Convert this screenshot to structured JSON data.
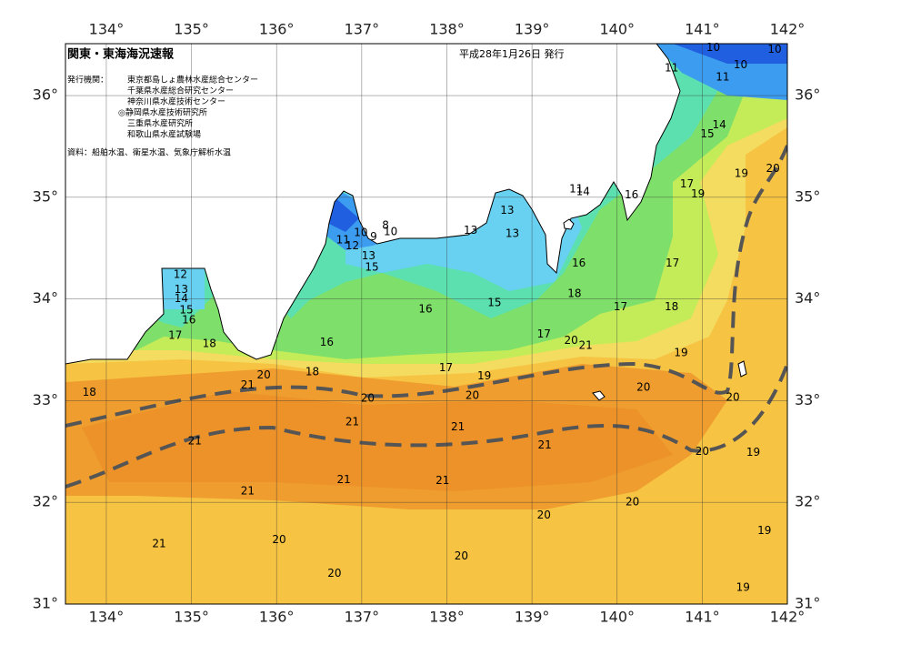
{
  "map": {
    "title": "関東・東海海況速報",
    "issue_date": "平成28年1月26日 発行",
    "issuers_label": "発行機関：",
    "issuers": [
      "東京都島しょ農林水産総合センター",
      "千葉県水産総合研究センター",
      "神奈川県水産技術センター",
      "◎静岡県水産技術研究所",
      "三重県水産研究所",
      "和歌山県水産試験場"
    ],
    "source": "資料：船舶水温、衛星水温、気象庁解析水温",
    "lon_range": [
      133.52,
      142
    ],
    "lat_range": [
      31,
      36.51
    ],
    "lon_ticks": [
      {
        "value": 134,
        "label": "134°"
      },
      {
        "value": 135,
        "label": "135°"
      },
      {
        "value": 136,
        "label": "136°"
      },
      {
        "value": 137,
        "label": "137°"
      },
      {
        "value": 138,
        "label": "138°"
      },
      {
        "value": 139,
        "label": "139°"
      },
      {
        "value": 140,
        "label": "140°"
      },
      {
        "value": 141,
        "label": "141°"
      },
      {
        "value": 142,
        "label": "142°"
      }
    ],
    "lat_ticks": [
      {
        "value": 31,
        "label": "31°"
      },
      {
        "value": 32,
        "label": "32°"
      },
      {
        "value": 33,
        "label": "33°"
      },
      {
        "value": 34,
        "label": "34°"
      },
      {
        "value": 35,
        "label": "35°"
      },
      {
        "value": 36,
        "label": "36°"
      }
    ],
    "contour_labels": [
      {
        "lon": 141.13,
        "lat": 36.47,
        "value": 10
      },
      {
        "lon": 141.45,
        "lat": 36.3,
        "value": 10
      },
      {
        "lon": 141.85,
        "lat": 36.45,
        "value": 10
      },
      {
        "lon": 140.64,
        "lat": 36.27,
        "value": 11
      },
      {
        "lon": 141.24,
        "lat": 36.18,
        "value": 11
      },
      {
        "lon": 141.2,
        "lat": 35.71,
        "value": 14
      },
      {
        "lon": 141.06,
        "lat": 35.62,
        "value": 15
      },
      {
        "lon": 141.46,
        "lat": 35.23,
        "value": 19
      },
      {
        "lon": 141.83,
        "lat": 35.28,
        "value": 20
      },
      {
        "lon": 140.82,
        "lat": 35.13,
        "value": 17
      },
      {
        "lon": 140.95,
        "lat": 35.03,
        "value": 19
      },
      {
        "lon": 140.17,
        "lat": 35.02,
        "value": 16
      },
      {
        "lon": 139.52,
        "lat": 35.08,
        "value": 11
      },
      {
        "lon": 139.6,
        "lat": 35.05,
        "value": 14
      },
      {
        "lon": 138.71,
        "lat": 34.87,
        "value": 13
      },
      {
        "lon": 138.77,
        "lat": 34.64,
        "value": 13
      },
      {
        "lon": 138.28,
        "lat": 34.67,
        "value": 13
      },
      {
        "lon": 137.28,
        "lat": 34.72,
        "value": 8
      },
      {
        "lon": 136.99,
        "lat": 34.65,
        "value": 10
      },
      {
        "lon": 137.14,
        "lat": 34.61,
        "value": 9
      },
      {
        "lon": 137.34,
        "lat": 34.66,
        "value": 10
      },
      {
        "lon": 136.78,
        "lat": 34.58,
        "value": 11
      },
      {
        "lon": 136.89,
        "lat": 34.52,
        "value": 12
      },
      {
        "lon": 137.08,
        "lat": 34.42,
        "value": 13
      },
      {
        "lon": 137.12,
        "lat": 34.31,
        "value": 15
      },
      {
        "lon": 139.55,
        "lat": 34.35,
        "value": 16
      },
      {
        "lon": 140.65,
        "lat": 34.35,
        "value": 17
      },
      {
        "lon": 139.5,
        "lat": 34.05,
        "value": 18
      },
      {
        "lon": 138.56,
        "lat": 33.96,
        "value": 15
      },
      {
        "lon": 137.75,
        "lat": 33.9,
        "value": 16
      },
      {
        "lon": 140.04,
        "lat": 33.92,
        "value": 17
      },
      {
        "lon": 140.64,
        "lat": 33.92,
        "value": 18
      },
      {
        "lon": 134.87,
        "lat": 34.24,
        "value": 12
      },
      {
        "lon": 134.88,
        "lat": 34.09,
        "value": 13
      },
      {
        "lon": 134.88,
        "lat": 34.0,
        "value": 14
      },
      {
        "lon": 134.94,
        "lat": 33.89,
        "value": 15
      },
      {
        "lon": 134.97,
        "lat": 33.79,
        "value": 16
      },
      {
        "lon": 134.81,
        "lat": 33.64,
        "value": 17
      },
      {
        "lon": 135.21,
        "lat": 33.56,
        "value": 18
      },
      {
        "lon": 136.59,
        "lat": 33.57,
        "value": 16
      },
      {
        "lon": 139.14,
        "lat": 33.65,
        "value": 17
      },
      {
        "lon": 139.46,
        "lat": 33.59,
        "value": 20
      },
      {
        "lon": 139.63,
        "lat": 33.54,
        "value": 21
      },
      {
        "lon": 140.75,
        "lat": 33.47,
        "value": 19
      },
      {
        "lon": 136.42,
        "lat": 33.28,
        "value": 18
      },
      {
        "lon": 137.99,
        "lat": 33.32,
        "value": 17
      },
      {
        "lon": 138.44,
        "lat": 33.24,
        "value": 19
      },
      {
        "lon": 135.85,
        "lat": 33.25,
        "value": 20
      },
      {
        "lon": 135.66,
        "lat": 33.15,
        "value": 21
      },
      {
        "lon": 133.8,
        "lat": 33.08,
        "value": 18
      },
      {
        "lon": 137.07,
        "lat": 33.02,
        "value": 20
      },
      {
        "lon": 138.3,
        "lat": 33.05,
        "value": 20
      },
      {
        "lon": 140.31,
        "lat": 33.13,
        "value": 20
      },
      {
        "lon": 141.36,
        "lat": 33.03,
        "value": 20
      },
      {
        "lon": 136.89,
        "lat": 32.79,
        "value": 21
      },
      {
        "lon": 138.13,
        "lat": 32.74,
        "value": 21
      },
      {
        "lon": 135.04,
        "lat": 32.6,
        "value": 21
      },
      {
        "lon": 139.15,
        "lat": 32.56,
        "value": 21
      },
      {
        "lon": 141.0,
        "lat": 32.5,
        "value": 20
      },
      {
        "lon": 141.6,
        "lat": 32.49,
        "value": 19
      },
      {
        "lon": 136.79,
        "lat": 32.22,
        "value": 21
      },
      {
        "lon": 137.95,
        "lat": 32.21,
        "value": 21
      },
      {
        "lon": 135.66,
        "lat": 32.11,
        "value": 21
      },
      {
        "lon": 140.18,
        "lat": 32.0,
        "value": 20
      },
      {
        "lon": 139.14,
        "lat": 31.87,
        "value": 20
      },
      {
        "lon": 141.73,
        "lat": 31.72,
        "value": 19
      },
      {
        "lon": 134.62,
        "lat": 31.59,
        "value": 21
      },
      {
        "lon": 136.03,
        "lat": 31.63,
        "value": 20
      },
      {
        "lon": 138.17,
        "lat": 31.47,
        "value": 20
      },
      {
        "lon": 136.68,
        "lat": 31.3,
        "value": 20
      },
      {
        "lon": 141.48,
        "lat": 31.16,
        "value": 19
      }
    ]
  }
}
